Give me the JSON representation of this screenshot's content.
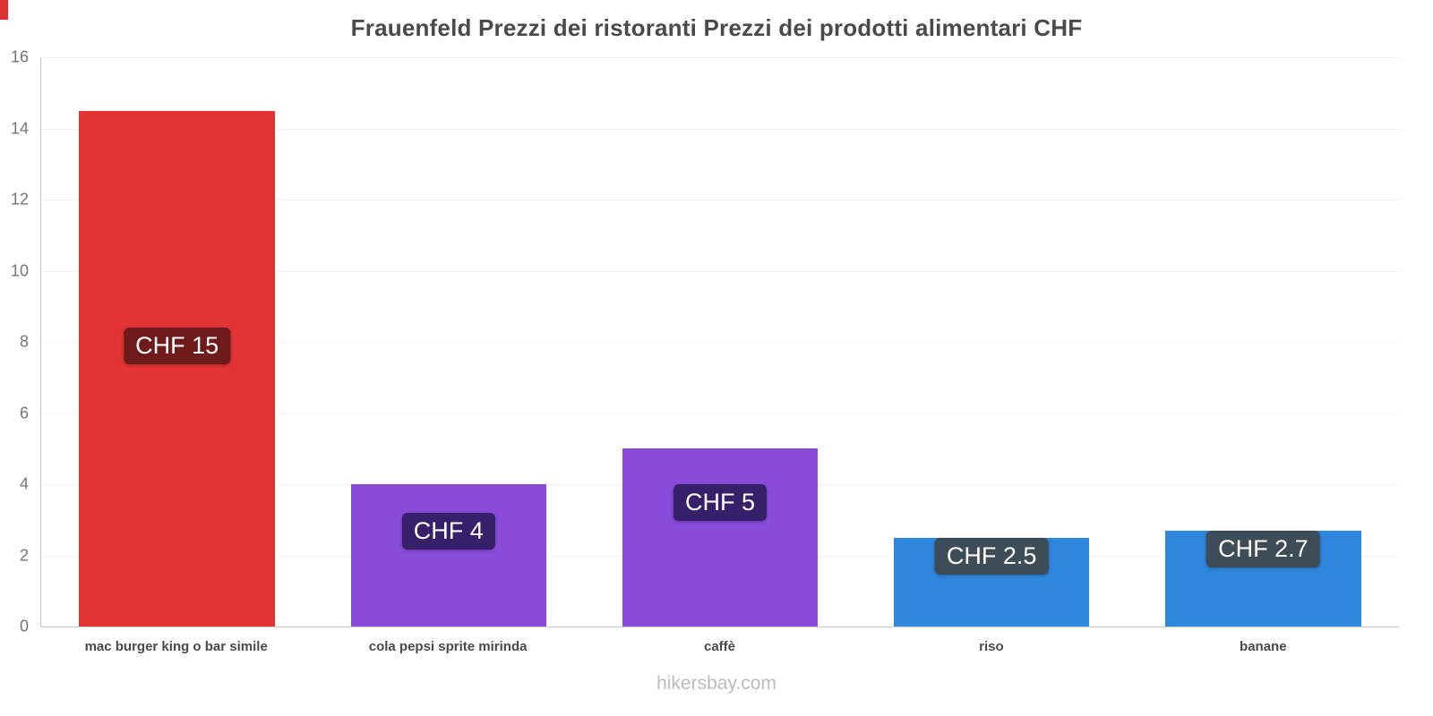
{
  "footer": "hikersbay.com",
  "accent_red": "#e03131",
  "chart_data": {
    "type": "bar",
    "title": "Frauenfeld Prezzi dei ristoranti Prezzi dei prodotti alimentari CHF",
    "categories": [
      "mac burger king o bar simile",
      "cola pepsi sprite mirinda",
      "caffè",
      "riso",
      "banane"
    ],
    "values": [
      14.5,
      4,
      5,
      2.5,
      2.7
    ],
    "labels": [
      "CHF 15",
      "CHF 4",
      "CHF 5",
      "CHF 2.5",
      "CHF 2.7"
    ],
    "bar_colors": [
      "#e23434",
      "#8a4bdb",
      "#8a4bdb",
      "#2e86dd",
      "#2e86dd"
    ],
    "label_bg_colors": [
      "#6f1b1b",
      "#37206a",
      "#37206a",
      "#3e4c58",
      "#3e4c58"
    ],
    "xlabel": "",
    "ylabel": "",
    "ylim": [
      0,
      16
    ],
    "yticks": [
      0,
      2,
      4,
      6,
      8,
      10,
      12,
      14,
      16
    ],
    "grid": true,
    "legend": "none",
    "currency": "CHF"
  }
}
